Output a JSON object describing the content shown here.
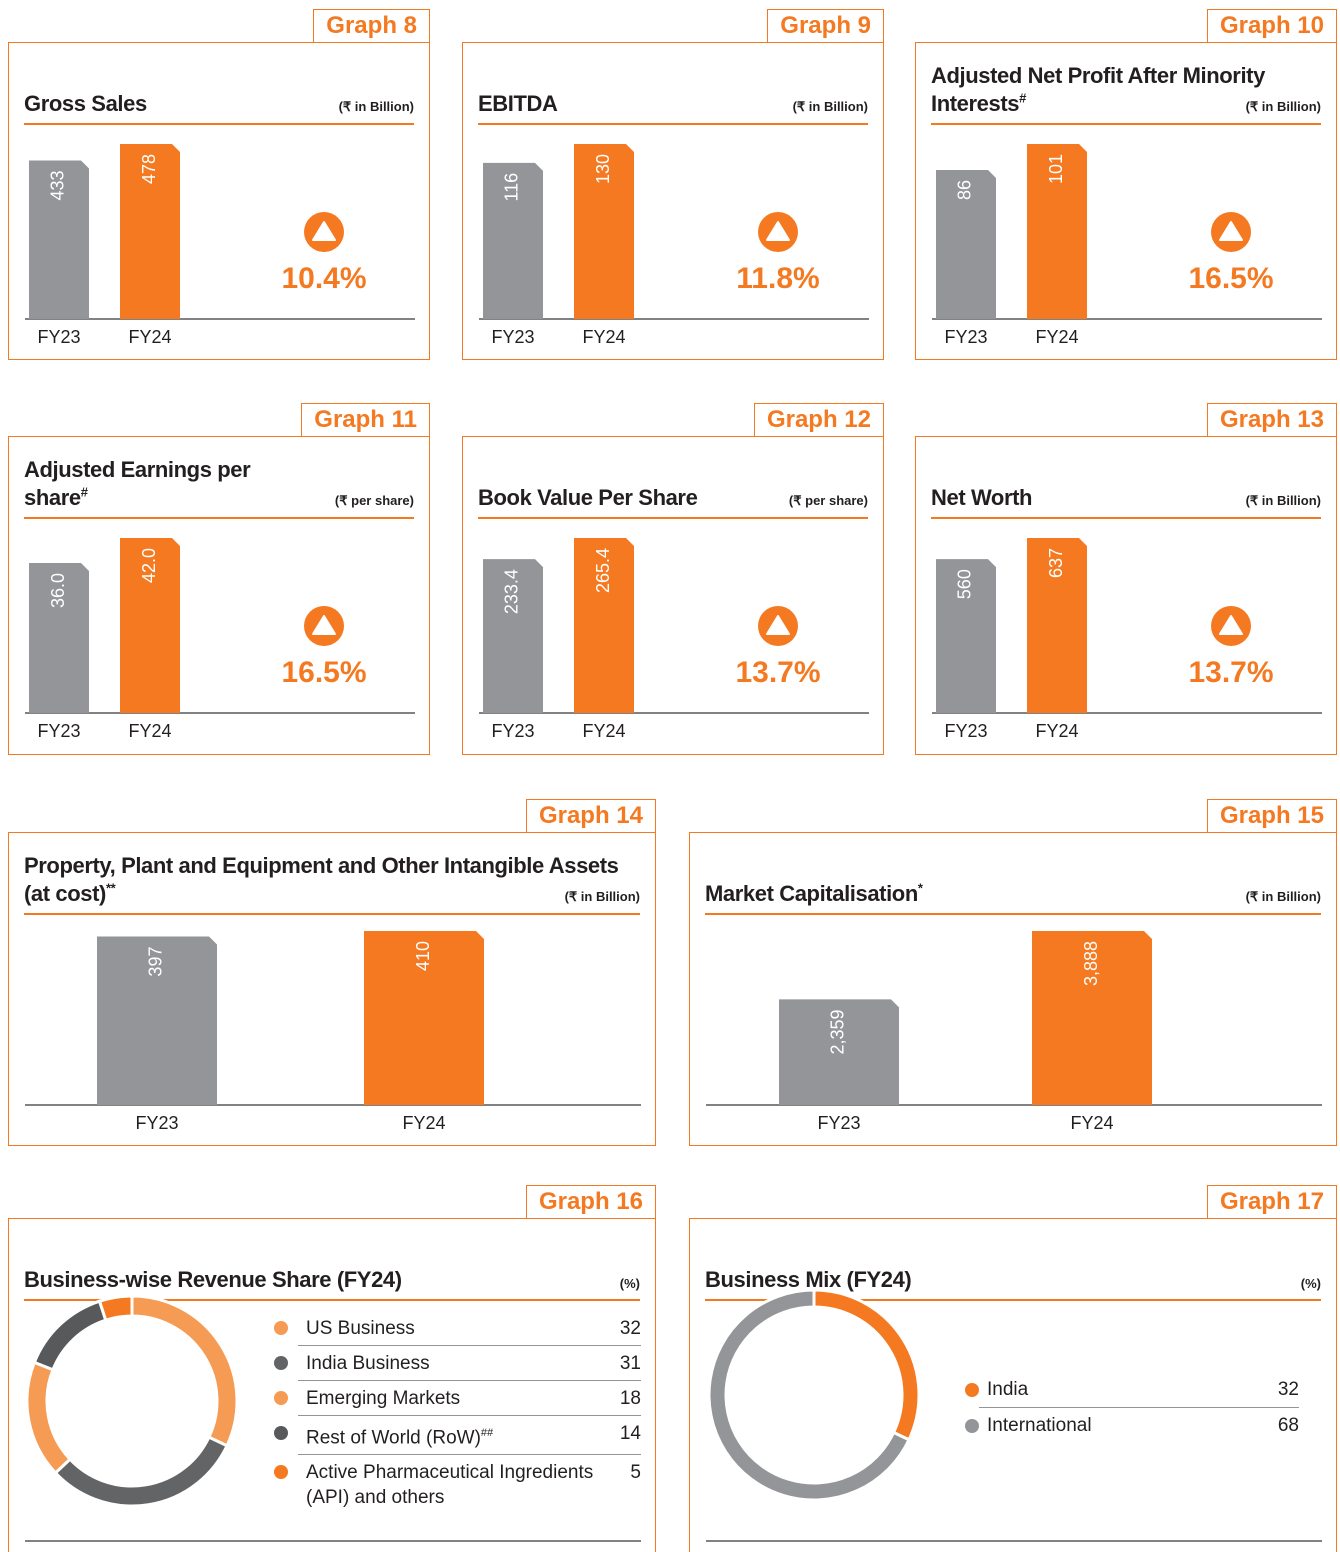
{
  "chart_data": [
    {
      "type": "bar",
      "label": "Graph 8",
      "title": "Gross Sales",
      "unit": "(₹ in Billion)",
      "categories": [
        "FY23",
        "FY24"
      ],
      "values": [
        433,
        478
      ],
      "colors": [
        "#939598",
        "#f47920"
      ],
      "annotation": "10.4%"
    },
    {
      "type": "bar",
      "label": "Graph 9",
      "title": "EBITDA",
      "unit": "(₹ in Billion)",
      "categories": [
        "FY23",
        "FY24"
      ],
      "values": [
        116,
        130
      ],
      "colors": [
        "#939598",
        "#f47920"
      ],
      "annotation": "11.8%"
    },
    {
      "type": "bar",
      "label": "Graph 10",
      "title": "Adjusted Net Profit After Minority Interests",
      "title_mark": "#",
      "unit": "(₹ in Billion)",
      "categories": [
        "FY23",
        "FY24"
      ],
      "values": [
        86,
        101
      ],
      "colors": [
        "#939598",
        "#f47920"
      ],
      "annotation": "16.5%"
    },
    {
      "type": "bar",
      "label": "Graph 11",
      "title": "Adjusted Earnings per share",
      "title_mark": "#",
      "unit": "(₹ per share)",
      "categories": [
        "FY23",
        "FY24"
      ],
      "values": [
        36,
        42
      ],
      "value_labels": [
        "36.0",
        "42.0"
      ],
      "colors": [
        "#939598",
        "#f47920"
      ],
      "annotation": "16.5%"
    },
    {
      "type": "bar",
      "label": "Graph 12",
      "title": "Book Value Per Share",
      "unit": "(₹ per share)",
      "categories": [
        "FY23",
        "FY24"
      ],
      "values": [
        233.4,
        265.4
      ],
      "colors": [
        "#939598",
        "#f47920"
      ],
      "annotation": "13.7%"
    },
    {
      "type": "bar",
      "label": "Graph 13",
      "title": "Net Worth",
      "unit": "(₹ in Billion)",
      "categories": [
        "FY23",
        "FY24"
      ],
      "values": [
        560,
        637
      ],
      "colors": [
        "#939598",
        "#f47920"
      ],
      "annotation": "13.7%"
    },
    {
      "type": "bar",
      "label": "Graph 14",
      "title": "Property, Plant and Equipment and Other Intangible Assets (at cost)",
      "title_mark": "**",
      "unit": "(₹ in Billion)",
      "categories": [
        "FY23",
        "FY24"
      ],
      "values": [
        397,
        410
      ],
      "colors": [
        "#939598",
        "#f47920"
      ]
    },
    {
      "type": "bar",
      "label": "Graph 15",
      "title": "Market Capitalisation",
      "title_mark": "*",
      "unit": "(₹ in Billion)",
      "categories": [
        "FY23",
        "FY24"
      ],
      "values": [
        2359,
        3888
      ],
      "value_labels": [
        "2,359",
        "3,888"
      ],
      "colors": [
        "#939598",
        "#f47920"
      ]
    },
    {
      "type": "donut",
      "label": "Graph 16",
      "title": "Business-wise Revenue Share (FY24)",
      "unit": "(%)",
      "categories": [
        "US Business",
        "India Business",
        "Emerging Markets",
        "Rest of World (RoW)",
        "Active Pharmaceutical Ingredients (API) and others"
      ],
      "category_marks": [
        null,
        null,
        null,
        "##",
        null
      ],
      "values": [
        32,
        31,
        18,
        14,
        5
      ],
      "colors": [
        "#f59b54",
        "#636466",
        "#f59b54",
        "#58595b",
        "#f47920"
      ]
    },
    {
      "type": "donut",
      "label": "Graph 17",
      "title": "Business Mix (FY24)",
      "unit": "(%)",
      "categories": [
        "India",
        "International"
      ],
      "values": [
        32,
        68
      ],
      "colors": [
        "#f47920",
        "#939598"
      ]
    }
  ]
}
